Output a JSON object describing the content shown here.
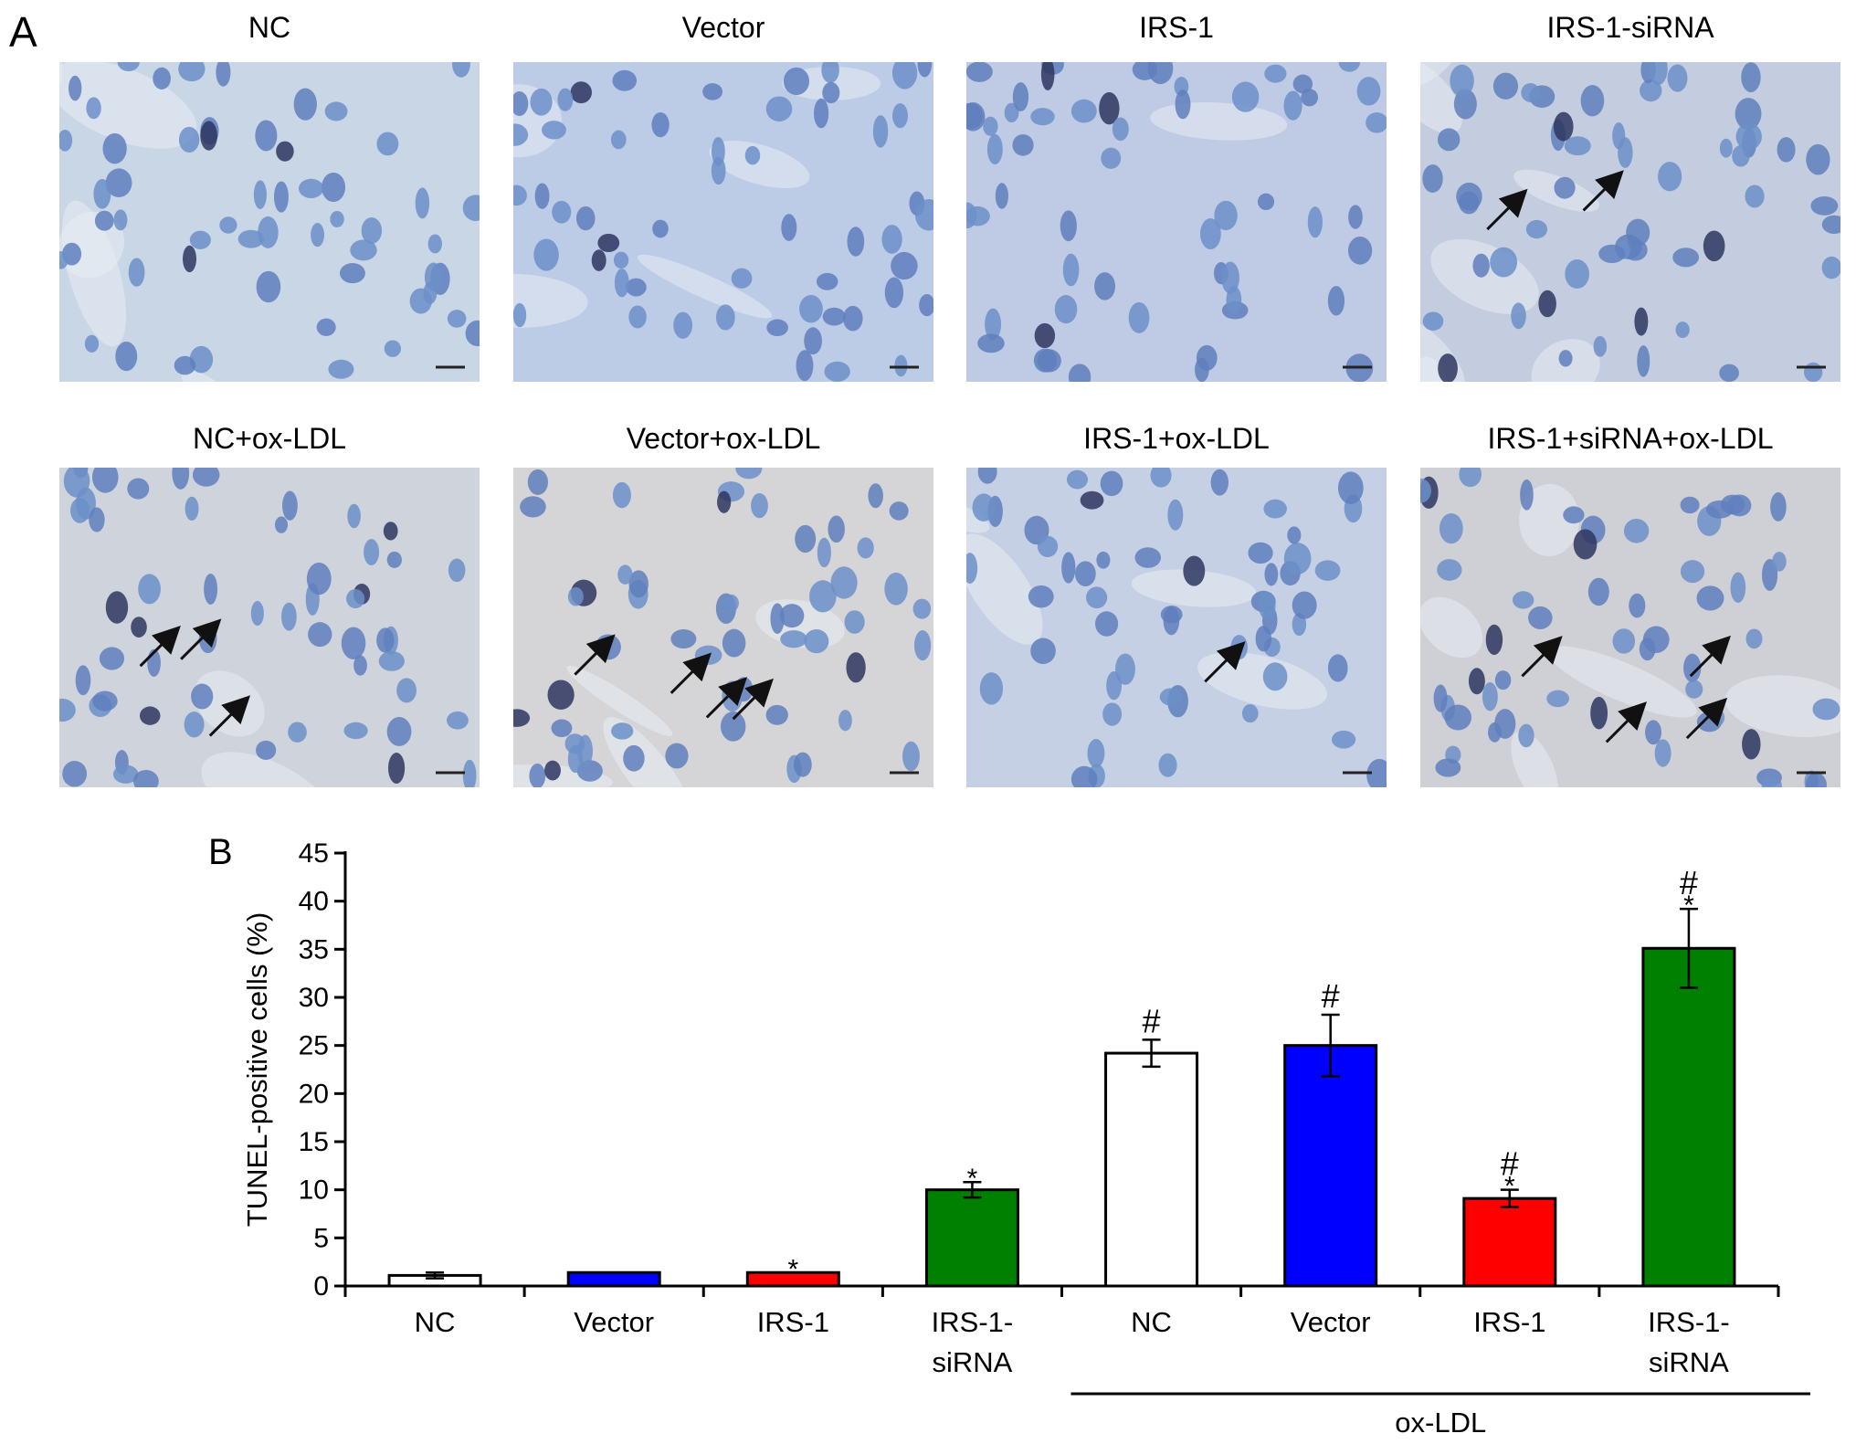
{
  "panel_a": {
    "letter": "A",
    "micrographs": [
      {
        "title": "NC",
        "bg": "#c9d6e6",
        "arrows": 0
      },
      {
        "title": "Vector",
        "bg": "#bccbe6",
        "arrows": 0
      },
      {
        "title": "IRS-1",
        "bg": "#bfcbe4",
        "arrows": 0
      },
      {
        "title": "IRS-1-siRNA",
        "bg": "#c3cddf",
        "arrows": 2
      },
      {
        "title": "NC+ox-LDL",
        "bg": "#cfd3dc",
        "arrows": 3
      },
      {
        "title": "Vector+ox-LDL",
        "bg": "#d5d5d8",
        "arrows": 4
      },
      {
        "title": "IRS-1+ox-LDL",
        "bg": "#c6d0e4",
        "arrows": 1
      },
      {
        "title": "IRS-1+siRNA+ox-LDL",
        "bg": "#cfcfd6",
        "arrows": 4
      }
    ]
  },
  "chart_data": {
    "panel_letter": "B",
    "type": "bar",
    "ylabel": "TUNEL-positive cells (%)",
    "ylim": [
      0,
      45
    ],
    "yticks": [
      0,
      5,
      10,
      15,
      20,
      25,
      30,
      35,
      40,
      45
    ],
    "categories": [
      {
        "label": "NC",
        "value": 1.1,
        "error": 0.3,
        "color": "#ffffff",
        "marks": []
      },
      {
        "label": "Vector",
        "value": 1.4,
        "error": 0,
        "color": "#0000ff",
        "marks": []
      },
      {
        "label": "IRS-1",
        "value": 1.4,
        "error": 0,
        "color": "#ff0000",
        "marks": [
          "*"
        ]
      },
      {
        "label": "IRS-1-\nsiRNA",
        "value": 10.0,
        "error": 0.8,
        "color": "#008000",
        "marks": [
          "*"
        ]
      },
      {
        "label": "NC",
        "value": 24.2,
        "error": 1.4,
        "color": "#ffffff",
        "marks": [
          "#"
        ]
      },
      {
        "label": "Vector",
        "value": 25.0,
        "error": 3.2,
        "color": "#0000ff",
        "marks": [
          "#"
        ]
      },
      {
        "label": "IRS-1",
        "value": 9.1,
        "error": 0.9,
        "color": "#ff0000",
        "marks": [
          "*",
          "#"
        ]
      },
      {
        "label": "IRS-1-\nsiRNA",
        "value": 35.1,
        "error": 4.1,
        "color": "#008000",
        "marks": [
          "*",
          "#"
        ]
      }
    ],
    "group_bracket": {
      "label": "ox-LDL",
      "from_index": 4,
      "to_index": 7
    }
  }
}
